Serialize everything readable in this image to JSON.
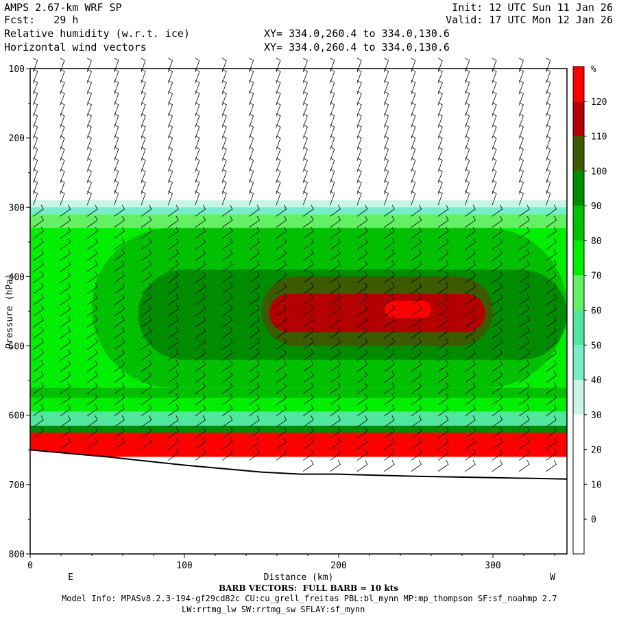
{
  "header": {
    "model": "AMPS 2.67-km WRF SP",
    "forecast": "Fcst:   29 h",
    "init": "Init: 12 UTC Sun 11 Jan 26",
    "valid": "Valid: 17 UTC Mon 12 Jan 26",
    "field1": "Relative humidity (w.r.t. ice)",
    "field2": "Horizontal wind vectors",
    "xy1": "XY= 334.0,260.4 to 334.0,130.6",
    "xy2": "XY= 334.0,260.4 to 334.0,130.6"
  },
  "footer": {
    "barb": "BARB VECTORS:  FULL BARB = 10 kts",
    "model_info": "Model Info: MPASv8.2.3-194-gf29cd82c CU:cu_grell_freitas PBL:bl_mynn MP:mp_thompson SF:sf_noahmp 2.7",
    "model_info2": "LW:rrtmg_lw SW:rrtmg_sw SFLAY:sf_mynn"
  },
  "chart_data": {
    "type": "heatmap",
    "title": "Relative humidity (w.r.t. ice)",
    "xlabel": "Distance (km)",
    "ylabel": "Pressure (hPa)",
    "x_end_labels": [
      "E",
      "W"
    ],
    "xlim": [
      0,
      348
    ],
    "ylim": [
      800,
      100
    ],
    "xticks": [
      0,
      100,
      200,
      300
    ],
    "yticks": [
      100,
      200,
      300,
      400,
      500,
      600,
      700,
      800
    ],
    "colorbar": {
      "unit": "%",
      "levels": [
        0,
        10,
        20,
        30,
        40,
        50,
        60,
        70,
        80,
        90,
        100,
        110,
        120
      ],
      "colors": [
        "#ffffff",
        "#ffffff",
        "#ffffff",
        "#ffffff",
        "#c8f5e6",
        "#78ebc8",
        "#50e6a0",
        "#64f064",
        "#00ee00",
        "#00c000",
        "#008c00",
        "#3c5a00",
        "#b40000",
        "#ff0000"
      ]
    },
    "bands": [
      {
        "p_top": 290,
        "p_bot": 300,
        "rh": 30
      },
      {
        "p_top": 300,
        "p_bot": 310,
        "rh": 40
      },
      {
        "p_top": 310,
        "p_bot": 330,
        "rh": 60
      },
      {
        "p_top": 330,
        "p_bot": 560,
        "rh": 75
      },
      {
        "p_top": 560,
        "p_bot": 575,
        "rh": 85
      },
      {
        "p_top": 575,
        "p_bot": 595,
        "rh": 75
      },
      {
        "p_top": 595,
        "p_bot": 615,
        "rh": 55
      },
      {
        "p_top": 615,
        "p_bot": 625,
        "rh": 90
      },
      {
        "p_top": 625,
        "p_bot": 660,
        "rh": 125
      }
    ],
    "regions": [
      {
        "x": [
          40,
          348
        ],
        "p_top": 330,
        "p_bot": 560,
        "rh": 85
      },
      {
        "x": [
          70,
          348
        ],
        "p_top": 390,
        "p_bot": 520,
        "rh": 95
      },
      {
        "x": [
          150,
          300
        ],
        "p_top": 400,
        "p_bot": 500,
        "rh": 105
      },
      {
        "x": [
          155,
          295
        ],
        "p_top": 425,
        "p_bot": 480,
        "rh": 115
      },
      {
        "x": [
          230,
          260
        ],
        "p_top": 435,
        "p_bot": 460,
        "rh": 125
      }
    ],
    "terrain": [
      {
        "x": 0,
        "p": 650
      },
      {
        "x": 50,
        "p": 660
      },
      {
        "x": 100,
        "p": 672
      },
      {
        "x": 150,
        "p": 682
      },
      {
        "x": 175,
        "p": 685
      },
      {
        "x": 200,
        "p": 685
      },
      {
        "x": 250,
        "p": 688
      },
      {
        "x": 300,
        "p": 690
      },
      {
        "x": 348,
        "p": 692
      }
    ]
  }
}
